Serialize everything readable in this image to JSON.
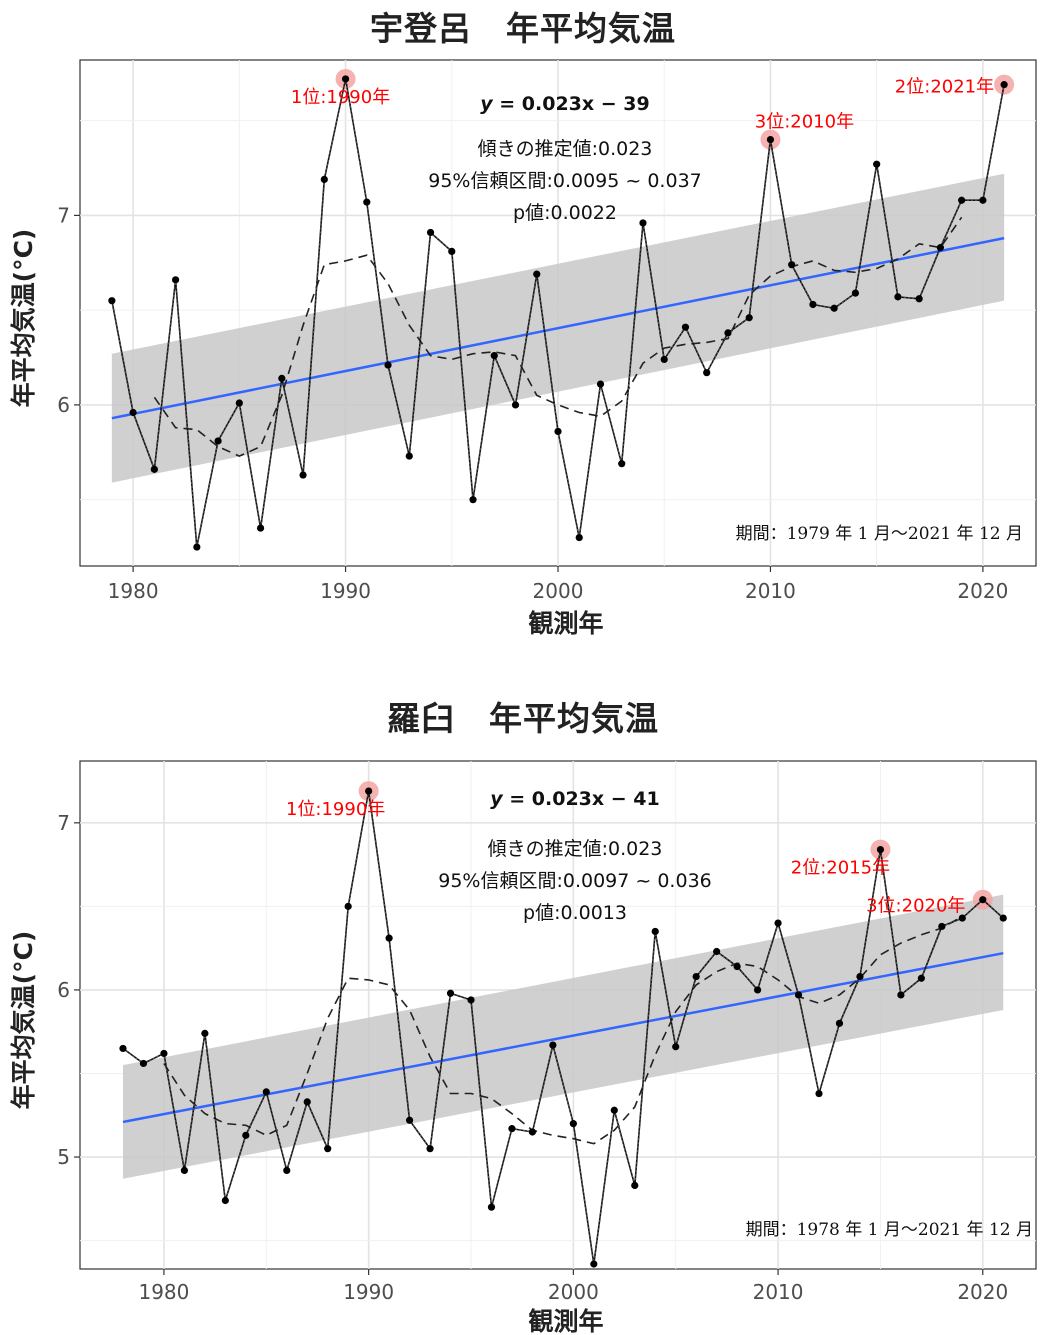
{
  "chart_data": [
    {
      "type": "line",
      "title": "宇登呂　年平均気温",
      "xlabel": "観測年",
      "ylabel": "年平均気温(°C)",
      "xlim": [
        1977.5,
        2022.5
      ],
      "ylim": [
        5.15,
        7.82
      ],
      "xticks": [
        1980,
        1990,
        2000,
        2010,
        2020
      ],
      "yticks": [
        6,
        7
      ],
      "grid": true,
      "x": [
        1979,
        1980,
        1981,
        1982,
        1983,
        1984,
        1985,
        1986,
        1987,
        1988,
        1989,
        1990,
        1991,
        1992,
        1993,
        1994,
        1995,
        1996,
        1997,
        1998,
        1999,
        2000,
        2001,
        2002,
        2003,
        2004,
        2005,
        2006,
        2007,
        2008,
        2009,
        2010,
        2011,
        2012,
        2013,
        2014,
        2015,
        2016,
        2017,
        2018,
        2019,
        2020,
        2021
      ],
      "series": [
        {
          "values": [
            6.55,
            5.96,
            5.66,
            6.66,
            5.25,
            5.81,
            6.01,
            5.35,
            6.14,
            5.63,
            7.19,
            7.72,
            7.07,
            6.21,
            5.73,
            6.91,
            6.81,
            5.5,
            6.26,
            6.0,
            6.69,
            5.86,
            5.3,
            6.11,
            5.69,
            6.96,
            6.24,
            6.41,
            6.17,
            6.38,
            6.46,
            7.4,
            6.74,
            6.53,
            6.51,
            6.59,
            7.27,
            6.57,
            6.56,
            6.83,
            7.08,
            7.08,
            7.69
          ]
        },
        {
          "values": [
            null,
            null,
            6.04,
            5.88,
            5.87,
            5.78,
            5.73,
            5.78,
            6.05,
            6.42,
            6.74,
            6.76,
            6.79,
            6.64,
            6.42,
            6.26,
            6.24,
            6.27,
            6.28,
            6.26,
            6.05,
            6.0,
            5.96,
            5.94,
            6.02,
            6.22,
            6.3,
            6.32,
            6.33,
            6.35,
            6.58,
            6.68,
            6.73,
            6.76,
            6.71,
            6.7,
            6.72,
            6.77,
            6.85,
            6.83,
            6.99,
            null,
            null
          ]
        }
      ],
      "trend": {
        "slope": 0.023,
        "intercept": -39,
        "start": [
          1979,
          5.93
        ],
        "end": [
          2021,
          6.88
        ],
        "band_lower": [
          5.59,
          6.55
        ],
        "band_upper": [
          6.27,
          7.22
        ]
      },
      "highlights": [
        {
          "year": 1990,
          "value": 7.72,
          "label": "1位:1990年"
        },
        {
          "year": 2021,
          "value": 7.69,
          "label": "2位:2021年"
        },
        {
          "year": 2010,
          "value": 7.4,
          "label": "3位:2010年"
        }
      ],
      "annotations": {
        "equation_lead": "y",
        "equation_rest": " = 0.023x − 39",
        "slope": "傾きの推定値:0.023",
        "ci": "95%信頼区間:0.0095 ~ 0.037",
        "p": "p値:0.0022",
        "period": "期間：1979 年 1 月～2021 年 12 月"
      },
      "colors": {
        "points": "#000000",
        "trend": "#3366ff",
        "band": "#c8c8c8",
        "highlight": "#ff0000",
        "grid": "#e6e6e6"
      }
    },
    {
      "type": "line",
      "title": "羅臼　年平均気温",
      "xlabel": "観測年",
      "ylabel": "年平均気温(°C)",
      "xlim": [
        1975.9,
        2022.6
      ],
      "ylim": [
        4.33,
        7.37
      ],
      "xticks": [
        1980,
        1990,
        2000,
        2010,
        2020
      ],
      "yticks": [
        5,
        6,
        7
      ],
      "grid": true,
      "x": [
        1978,
        1979,
        1980,
        1981,
        1982,
        1983,
        1984,
        1985,
        1986,
        1987,
        1988,
        1989,
        1990,
        1991,
        1992,
        1993,
        1994,
        1995,
        1996,
        1997,
        1998,
        1999,
        2000,
        2001,
        2002,
        2003,
        2004,
        2005,
        2006,
        2007,
        2008,
        2009,
        2010,
        2011,
        2012,
        2013,
        2014,
        2015,
        2016,
        2017,
        2018,
        2019,
        2020,
        2021
      ],
      "series": [
        {
          "values": [
            5.65,
            5.56,
            5.62,
            4.92,
            5.74,
            4.74,
            5.13,
            5.39,
            4.92,
            5.33,
            5.05,
            6.5,
            7.19,
            6.31,
            5.22,
            5.05,
            5.98,
            5.94,
            4.7,
            5.17,
            5.15,
            5.67,
            5.2,
            4.36,
            5.28,
            4.83,
            6.35,
            5.66,
            6.08,
            6.23,
            6.14,
            6.0,
            6.4,
            5.97,
            5.38,
            5.8,
            6.08,
            6.84,
            5.97,
            6.07,
            6.38,
            6.43,
            6.54,
            6.43
          ]
        },
        {
          "values": [
            null,
            null,
            5.56,
            5.37,
            5.26,
            5.2,
            5.19,
            5.13,
            5.19,
            5.5,
            5.83,
            6.07,
            6.06,
            6.03,
            5.88,
            5.6,
            5.38,
            5.38,
            5.35,
            5.26,
            5.16,
            5.13,
            5.11,
            5.08,
            5.16,
            5.3,
            5.61,
            5.87,
            6.03,
            6.11,
            6.16,
            6.14,
            6.06,
            5.96,
            5.92,
            5.97,
            6.07,
            6.21,
            6.28,
            6.33,
            6.37,
            6.44,
            null,
            null
          ]
        }
      ],
      "trend": {
        "slope": 0.023,
        "intercept": -41,
        "start": [
          1978,
          5.21
        ],
        "end": [
          2021,
          6.22
        ],
        "band_lower": [
          4.87,
          5.88
        ],
        "band_upper": [
          5.55,
          6.57
        ]
      },
      "highlights": [
        {
          "year": 1990,
          "value": 7.19,
          "label": "1位:1990年"
        },
        {
          "year": 2015,
          "value": 6.84,
          "label": "2位:2015年"
        },
        {
          "year": 2020,
          "value": 6.54,
          "label": "3位:2020年"
        }
      ],
      "annotations": {
        "equation_lead": "y",
        "equation_rest": " = 0.023x − 41",
        "slope": "傾きの推定値:0.023",
        "ci": "95%信頼区間:0.0097 ~ 0.036",
        "p": "p値:0.0013",
        "period": "期間：1978 年 1 月～2021 年 12 月"
      },
      "colors": {
        "points": "#000000",
        "trend": "#3366ff",
        "band": "#c8c8c8",
        "highlight": "#ff0000",
        "grid": "#e6e6e6"
      }
    }
  ]
}
